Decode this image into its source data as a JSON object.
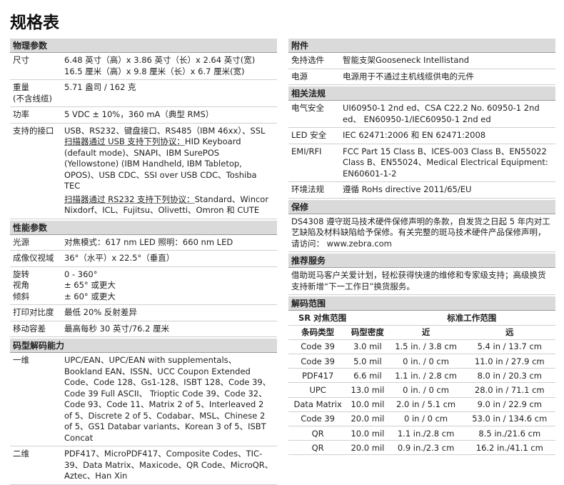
{
  "title": "规格表",
  "left": {
    "physical": {
      "header": "物理参数",
      "rows": [
        {
          "label": "尺寸",
          "lines": [
            "6.48 英寸（高）x 3.86 英寸（长）x 2.64 英寸(宽)",
            "16.5 厘米（高）x 9.8 厘米（长）x 6.7 厘米(宽)"
          ]
        },
        {
          "label": "重量",
          "label2": "(不含线缆)",
          "lines": [
            "5.71 盎司 / 162 克"
          ]
        },
        {
          "label": "功率",
          "lines": [
            "5 VDC ± 10%，360 mA（典型 RMS）"
          ]
        }
      ],
      "interface": {
        "label": "支持的接口",
        "line1": "USB、RS232、键盘接口、RS485（IBM 46xx）、SSL",
        "usb_u": "扫描器通过 USB 支持下列协议：",
        "usb_rest": "HID Keyboard (default mode)、SNAPI、IBM SurePOS (Yellowstone) (IBM Handheld, IBM Tabletop, OPOS)、USB CDC、SSI over USB CDC、Toshiba TEC",
        "rs_u": "扫描器通过 RS232 支持下列协议：",
        "rs_rest": "Standard、Wincor Nixdorf、ICL、Fujitsu、Olivetti、Omron 和 CUTE"
      }
    },
    "performance": {
      "header": "性能参数",
      "rows": [
        {
          "label": "光源",
          "lines": [
            "对焦模式：617 nm LED 照明：660 nm LED"
          ]
        },
        {
          "label": "成像仪视域",
          "lines": [
            "36°（水平）x 22.5°（垂直）"
          ]
        },
        {
          "label": "旋转",
          "label2": "视角",
          "label3": "倾斜",
          "lines": [
            "0 - 360°",
            "± 65° 或更大",
            "± 60° 或更大"
          ]
        },
        {
          "label": "打印对比度",
          "lines": [
            "最低 20% 反射差异"
          ]
        },
        {
          "label": "移动容差",
          "lines": [
            "最高每秒 30 英寸/76.2 厘米"
          ]
        }
      ]
    },
    "decode": {
      "header": "码型解码能力",
      "rows": [
        {
          "label": "一维",
          "text": "UPC/EAN、UPC/EAN with supplementals、Bookland EAN、ISSN、UCC Coupon Extended Code、Code 128、Gs1-128、ISBT 128、Code 39、Code 39 Full ASCII、 Trioptic Code 39、Code 32、Code 93、Code 11、Matrix 2 of 5、Interleaved 2 of 5、Discrete 2 of 5、Codabar、MSL、Chinese 2 of 5、GS1 Databar variants、Korean 3 of 5、ISBT Concat"
        },
        {
          "label": "二维",
          "text": "PDF417、MicroPDF417、Composite Codes、TIC-39、Data Matrix、Maxicode、QR Code、MicroQR、Aztec、Han Xin"
        }
      ]
    }
  },
  "right": {
    "accessories": {
      "header": "附件",
      "rows": [
        {
          "label": "免持选件",
          "text": "智能支架Gooseneck Intellistand"
        },
        {
          "label": "电源",
          "text": "电源用于不通过主机线缆供电的元件"
        }
      ]
    },
    "regulatory": {
      "header": "相关法规",
      "rows": [
        {
          "label": "电气安全",
          "text": "UI60950-1 2nd ed、CSA C22.2 No. 60950-1 2nd ed、 EN60950-1/IEC60950-1 2nd ed"
        },
        {
          "label": "LED 安全",
          "text": "IEC 62471:2006 和 EN 62471:2008"
        },
        {
          "label": "EMI/RFI",
          "text": "FCC Part 15 Class B、ICES-003 Class B、EN55022 Class B、EN55024、Medical Electrical Equipment: EN60601-1-2"
        },
        {
          "label": "环境法规",
          "text": "遵循 RoHs directive 2011/65/EU"
        }
      ]
    },
    "warranty": {
      "header": "保修",
      "text": "DS4308 遵守斑马技术硬件保修声明的条款，自发货之日起 5 年内对工艺缺陷及材料缺陷给予保修。有关完整的斑马技术硬件产品保修声明，请访问： www.zebra.com"
    },
    "services": {
      "header": "推荐服务",
      "text": "借助斑马客户关爱计划，轻松获得快速的维修和专家级支持；高级换货支持新增“下一工作日”换货服务。"
    },
    "range": {
      "header": "解码范围",
      "sr": "SR 对焦范围",
      "std": "标准工作范围",
      "columns": [
        "条码类型",
        "码型密度",
        "近",
        "远"
      ],
      "rows": [
        [
          "Code 39",
          "3.0 mil",
          "1.5 in. / 3.8 cm",
          "5.4 in / 13.7 cm"
        ],
        [
          "Code 39",
          "5.0 mil",
          "0 in. / 0 cm",
          "11.0 in / 27.9 cm"
        ],
        [
          "PDF417",
          "6.6 mil",
          "1.1 in. / 2.8 cm",
          "8.0 in / 20.3 cm"
        ],
        [
          "UPC",
          "13.0 mil",
          "0 in. / 0 cm",
          "28.0 in / 71.1 cm"
        ],
        [
          "Data Matrix",
          "10.0 mil",
          "2.0 in / 5.1 cm",
          "9.0 in / 22.9 cm"
        ],
        [
          "Code 39",
          "20.0 mil",
          "0 in / 0 cm",
          "53.0 in / 134.6 cm"
        ],
        [
          "QR",
          "10.0 mil",
          "1.1 in./2.8 cm",
          "8.5 in./21.6 cm"
        ],
        [
          "QR",
          "20.0 mil",
          "0.9 in./2.3 cm",
          "16.2 in./41.1 cm"
        ]
      ]
    }
  }
}
